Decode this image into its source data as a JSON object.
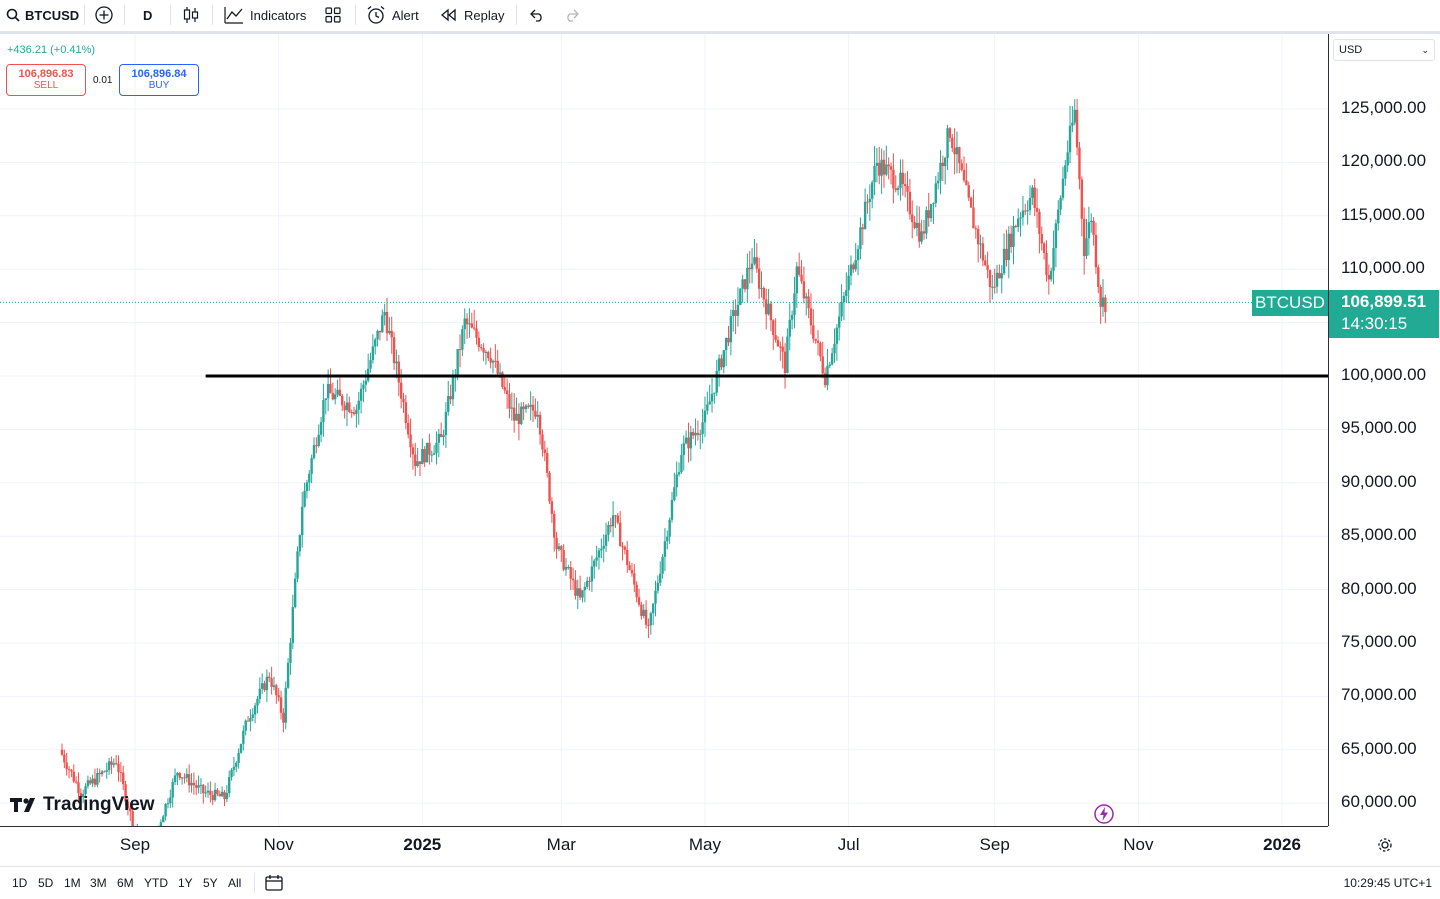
{
  "toolbar": {
    "symbol": "BTCUSD",
    "interval": "D",
    "indicators_label": "Indicators",
    "alert_label": "Alert",
    "replay_label": "Replay"
  },
  "legend": {
    "change": "+436.21 (+0.41%)",
    "sell_price": "106,896.83",
    "sell_label": "SELL",
    "spread": "0.01",
    "buy_price": "106,896.84",
    "buy_label": "BUY"
  },
  "currency_select": "USD",
  "last_price": {
    "symbol_tag": "BTCUSD",
    "price": "106,899.51",
    "countdown": "14:30:15"
  },
  "watermark": "TradingView",
  "range_buttons": [
    "1D",
    "5D",
    "1M",
    "3M",
    "6M",
    "YTD",
    "1Y",
    "5Y",
    "All"
  ],
  "clock": "10:29:45 UTC+1",
  "colors": {
    "up": "#26a69a",
    "down": "#ef5350",
    "accent": "#2962ff",
    "last_price": "#22ab94"
  },
  "chart_data": {
    "type": "candlestick",
    "ylim": [
      57000,
      131000
    ],
    "y_ticks": [
      "60,000.00",
      "65,000.00",
      "70,000.00",
      "75,000.00",
      "80,000.00",
      "85,000.00",
      "90,000.00",
      "95,000.00",
      "100,000.00",
      "105,000.00",
      "110,000.00",
      "115,000.00",
      "120,000.00",
      "125,000.00"
    ],
    "x_ticks": [
      "Sep",
      "Nov",
      "2025",
      "Mar",
      "May",
      "Jul",
      "Sep",
      "Nov",
      "2026"
    ],
    "horizontal_line": {
      "value": 100000,
      "from": "2024-10-01"
    },
    "last_value": 106899.51,
    "series": [
      {
        "date": "2024-08-01",
        "close": 65000
      },
      {
        "date": "2024-08-10",
        "close": 61000
      },
      {
        "date": "2024-08-25",
        "close": 64000
      },
      {
        "date": "2024-09-06",
        "close": 54000
      },
      {
        "date": "2024-09-20",
        "close": 63000
      },
      {
        "date": "2024-10-01",
        "close": 61000
      },
      {
        "date": "2024-10-10",
        "close": 60500
      },
      {
        "date": "2024-10-20",
        "close": 68000
      },
      {
        "date": "2024-10-29",
        "close": 72000
      },
      {
        "date": "2024-11-04",
        "close": 68000
      },
      {
        "date": "2024-11-12",
        "close": 88000
      },
      {
        "date": "2024-11-22",
        "close": 98500
      },
      {
        "date": "2024-12-05",
        "close": 97000
      },
      {
        "date": "2024-12-17",
        "close": 106000
      },
      {
        "date": "2024-12-30",
        "close": 92000
      },
      {
        "date": "2025-01-10",
        "close": 94000
      },
      {
        "date": "2025-01-20",
        "close": 105000
      },
      {
        "date": "2025-01-31",
        "close": 102000
      },
      {
        "date": "2025-02-10",
        "close": 96000
      },
      {
        "date": "2025-02-20",
        "close": 97000
      },
      {
        "date": "2025-02-28",
        "close": 84000
      },
      {
        "date": "2025-03-10",
        "close": 79000
      },
      {
        "date": "2025-03-24",
        "close": 87000
      },
      {
        "date": "2025-04-08",
        "close": 76000
      },
      {
        "date": "2025-04-22",
        "close": 93000
      },
      {
        "date": "2025-05-02",
        "close": 96000
      },
      {
        "date": "2025-05-12",
        "close": 104000
      },
      {
        "date": "2025-05-22",
        "close": 111000
      },
      {
        "date": "2025-06-05",
        "close": 101000
      },
      {
        "date": "2025-06-10",
        "close": 110000
      },
      {
        "date": "2025-06-22",
        "close": 100000
      },
      {
        "date": "2025-07-02",
        "close": 109000
      },
      {
        "date": "2025-07-14",
        "close": 120000
      },
      {
        "date": "2025-07-24",
        "close": 118000
      },
      {
        "date": "2025-08-02",
        "close": 113000
      },
      {
        "date": "2025-08-14",
        "close": 123000
      },
      {
        "date": "2025-08-22",
        "close": 116000
      },
      {
        "date": "2025-09-01",
        "close": 108000
      },
      {
        "date": "2025-09-12",
        "close": 115000
      },
      {
        "date": "2025-09-18",
        "close": 117000
      },
      {
        "date": "2025-09-25",
        "close": 109000
      },
      {
        "date": "2025-10-02",
        "close": 120000
      },
      {
        "date": "2025-10-06",
        "close": 124700
      },
      {
        "date": "2025-10-10",
        "close": 112000
      },
      {
        "date": "2025-10-13",
        "close": 115000
      },
      {
        "date": "2025-10-17",
        "close": 107000
      },
      {
        "date": "2025-10-19",
        "close": 106899
      }
    ]
  }
}
